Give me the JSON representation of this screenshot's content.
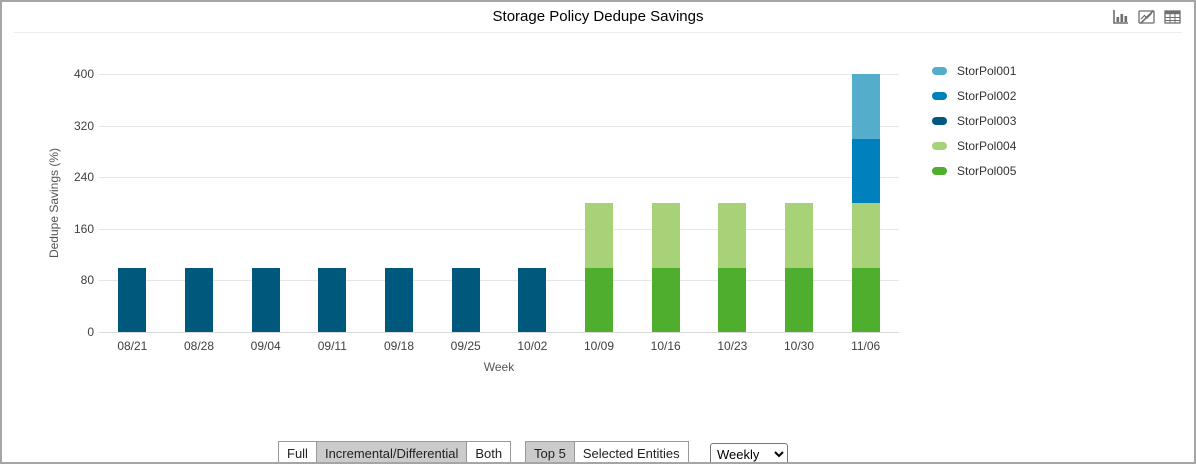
{
  "header": {
    "title": "Storage Policy Dedupe Savings",
    "icons": [
      {
        "name": "bar-chart-icon"
      },
      {
        "name": "chart-edit-icon"
      },
      {
        "name": "table-view-icon"
      }
    ]
  },
  "chart_data": {
    "type": "bar",
    "stacked": true,
    "title": "Storage Policy Dedupe Savings",
    "xlabel": "Week",
    "ylabel": "Dedupe Savings (%)",
    "ylim": [
      0,
      400
    ],
    "yticks": [
      0,
      80,
      160,
      240,
      320,
      400
    ],
    "grid": true,
    "legend_position": "right",
    "categories": [
      "08/21",
      "08/28",
      "09/04",
      "09/11",
      "09/18",
      "09/25",
      "10/02",
      "10/09",
      "10/16",
      "10/23",
      "10/30",
      "11/06"
    ],
    "series": [
      {
        "name": "StorPol001",
        "color": "#54aecb",
        "values": [
          0,
          0,
          0,
          0,
          0,
          0,
          0,
          0,
          0,
          0,
          0,
          100
        ]
      },
      {
        "name": "StorPol002",
        "color": "#0081be",
        "values": [
          0,
          0,
          0,
          0,
          0,
          0,
          0,
          0,
          0,
          0,
          0,
          100
        ]
      },
      {
        "name": "StorPol003",
        "color": "#00587c",
        "values": [
          100,
          100,
          100,
          100,
          100,
          100,
          100,
          0,
          0,
          0,
          0,
          0
        ]
      },
      {
        "name": "StorPol004",
        "color": "#a8d278",
        "values": [
          0,
          0,
          0,
          0,
          0,
          0,
          0,
          100,
          100,
          100,
          100,
          100
        ]
      },
      {
        "name": "StorPol005",
        "color": "#4fae2e",
        "values": [
          0,
          0,
          0,
          0,
          0,
          0,
          0,
          100,
          100,
          100,
          100,
          100
        ]
      }
    ]
  },
  "controls": {
    "scope_toggle": [
      {
        "label": "Full",
        "selected": false
      },
      {
        "label": "Incremental/Differential",
        "selected": true
      },
      {
        "label": "Both",
        "selected": false
      }
    ],
    "entity_toggle": [
      {
        "label": "Top 5",
        "selected": true
      },
      {
        "label": "Selected Entities",
        "selected": false
      }
    ],
    "frequency_select": {
      "value": "Weekly",
      "options": [
        "Weekly"
      ]
    }
  }
}
